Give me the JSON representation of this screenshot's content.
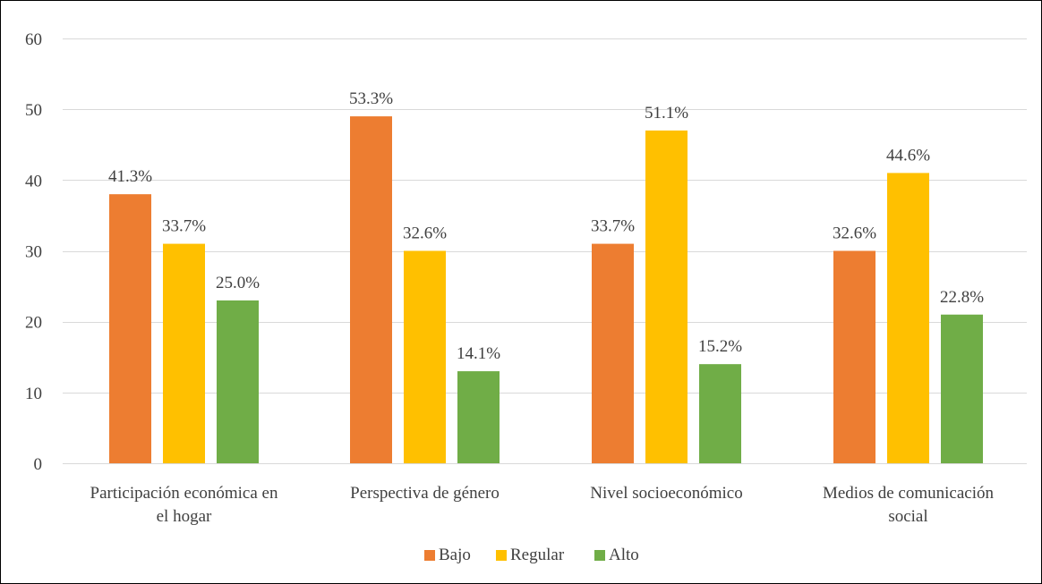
{
  "chart_data": {
    "type": "bar",
    "categories": [
      [
        "Participación económica en",
        "el hogar"
      ],
      [
        "Perspectiva de género"
      ],
      [
        "Nivel socioeconómico"
      ],
      [
        "Medios de comunicación",
        "social"
      ]
    ],
    "series": [
      {
        "name": "Bajo",
        "color": "#ED7D31",
        "values": [
          38,
          49,
          31,
          30
        ],
        "labels": [
          "41.3%",
          "53.3%",
          "33.7%",
          "32.6%"
        ]
      },
      {
        "name": "Regular",
        "color": "#FFC000",
        "values": [
          31,
          30,
          47,
          41
        ],
        "labels": [
          "33.7%",
          "32.6%",
          "51.1%",
          "44.6%"
        ]
      },
      {
        "name": "Alto",
        "color": "#70AD47",
        "values": [
          23,
          13,
          14,
          21
        ],
        "labels": [
          "25.0%",
          "14.1%",
          "15.2%",
          "22.8%"
        ]
      }
    ],
    "ylim": [
      0,
      60
    ],
    "yticks": [
      0,
      10,
      20,
      30,
      40,
      50,
      60
    ],
    "grid": true,
    "legend": "bottom-center",
    "gridline_color": "#D9D9D9"
  }
}
